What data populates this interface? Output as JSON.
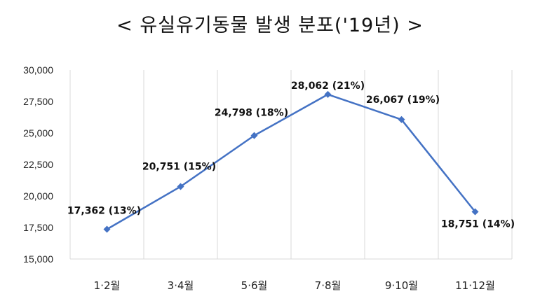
{
  "chart_data": {
    "type": "line",
    "title": "< 유실유기동물 발생 분포('19년) >",
    "categories": [
      "1·2월",
      "3·4월",
      "5·6월",
      "7·8월",
      "9·10월",
      "11·12월"
    ],
    "series": [
      {
        "values": [
          17362,
          20751,
          24798,
          28062,
          26067,
          18751
        ],
        "data_labels": [
          "17,362 (13%)",
          "20,751 (15%)",
          "24,798 (18%)",
          "28,062 (21%)",
          "26,067 (19%)",
          "18,751 (14%)"
        ]
      }
    ],
    "ylim": [
      15000,
      30000
    ],
    "yticks": [
      15000,
      17500,
      20000,
      22500,
      25000,
      27500,
      30000
    ],
    "ytick_labels": [
      "15,000",
      "17,500",
      "20,000",
      "22,500",
      "25,000",
      "27,500",
      "30,000"
    ],
    "grid": "vertical",
    "line_color": "#4472C4",
    "grid_color": "#D9D9D9",
    "marker": "diamond"
  }
}
